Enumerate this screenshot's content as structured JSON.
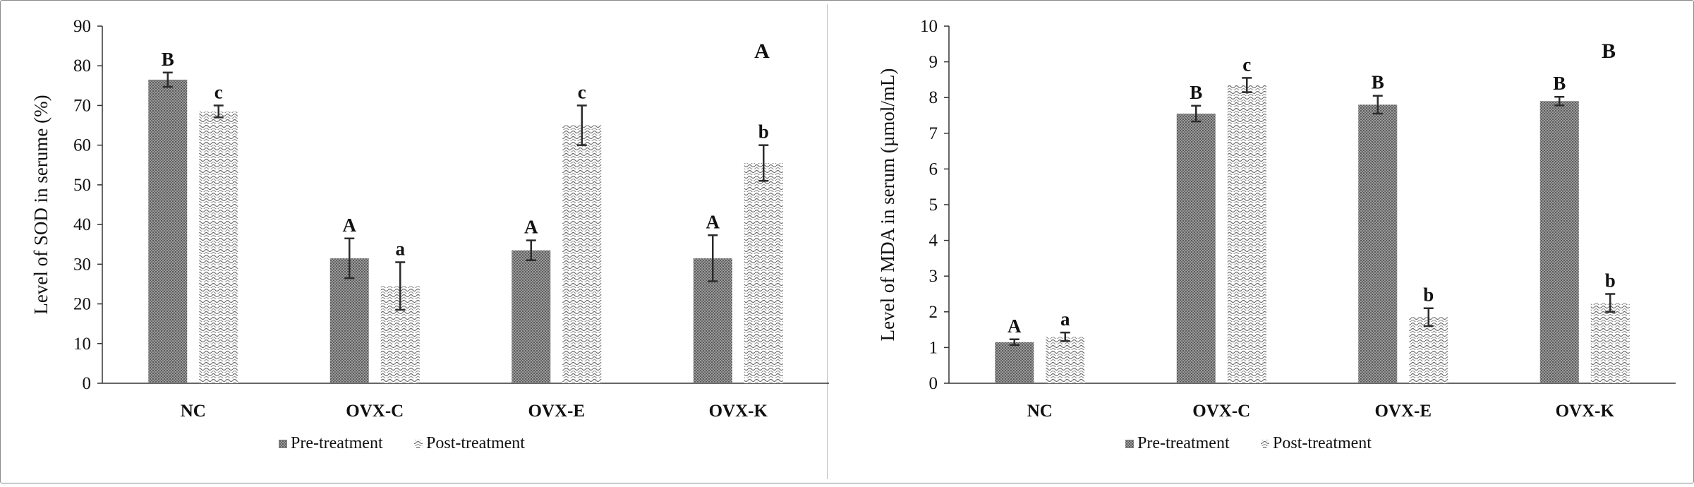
{
  "chart_data": [
    {
      "panel_label": "A",
      "type": "bar",
      "ylabel": "Level of SOD in serume (%)",
      "xlabel": "",
      "ylim": [
        0,
        90
      ],
      "yticks": [
        "0",
        "10",
        "20",
        "30",
        "40",
        "50",
        "60",
        "70",
        "80",
        "90"
      ],
      "categories": [
        "NC",
        "OVX-C",
        "OVX-E",
        "OVX-K"
      ],
      "grid": false,
      "legend": "bottom",
      "series": [
        {
          "name": "Pre-treatment",
          "values": [
            76.5,
            31.5,
            33.5,
            31.5
          ],
          "errors": [
            1.8,
            5.0,
            2.5,
            5.8
          ],
          "letters": [
            "B",
            "A",
            "A",
            "A"
          ]
        },
        {
          "name": "Post-treatment",
          "values": [
            68.5,
            24.5,
            65,
            55.5
          ],
          "errors": [
            1.5,
            6.0,
            5.0,
            4.5
          ],
          "letters": [
            "c",
            "a",
            "c",
            "b"
          ]
        }
      ]
    },
    {
      "panel_label": "B",
      "type": "bar",
      "ylabel": "Level of MDA in serum (µmol/mL)",
      "xlabel": "",
      "ylim": [
        0,
        10
      ],
      "yticks": [
        "0",
        "1",
        "2",
        "3",
        "4",
        "5",
        "6",
        "7",
        "8",
        "9",
        "10"
      ],
      "categories": [
        "NC",
        "OVX-C",
        "OVX-E",
        "OVX-K"
      ],
      "grid": false,
      "legend": "bottom",
      "series": [
        {
          "name": "Pre-treatment",
          "values": [
            1.15,
            7.55,
            7.8,
            7.9
          ],
          "errors": [
            0.08,
            0.22,
            0.25,
            0.12
          ],
          "letters": [
            "A",
            "B",
            "B",
            "B"
          ]
        },
        {
          "name": "Post-treatment",
          "values": [
            1.3,
            8.35,
            1.85,
            2.25
          ],
          "errors": [
            0.12,
            0.2,
            0.25,
            0.25
          ],
          "letters": [
            "a",
            "c",
            "b",
            "b"
          ]
        }
      ]
    }
  ]
}
